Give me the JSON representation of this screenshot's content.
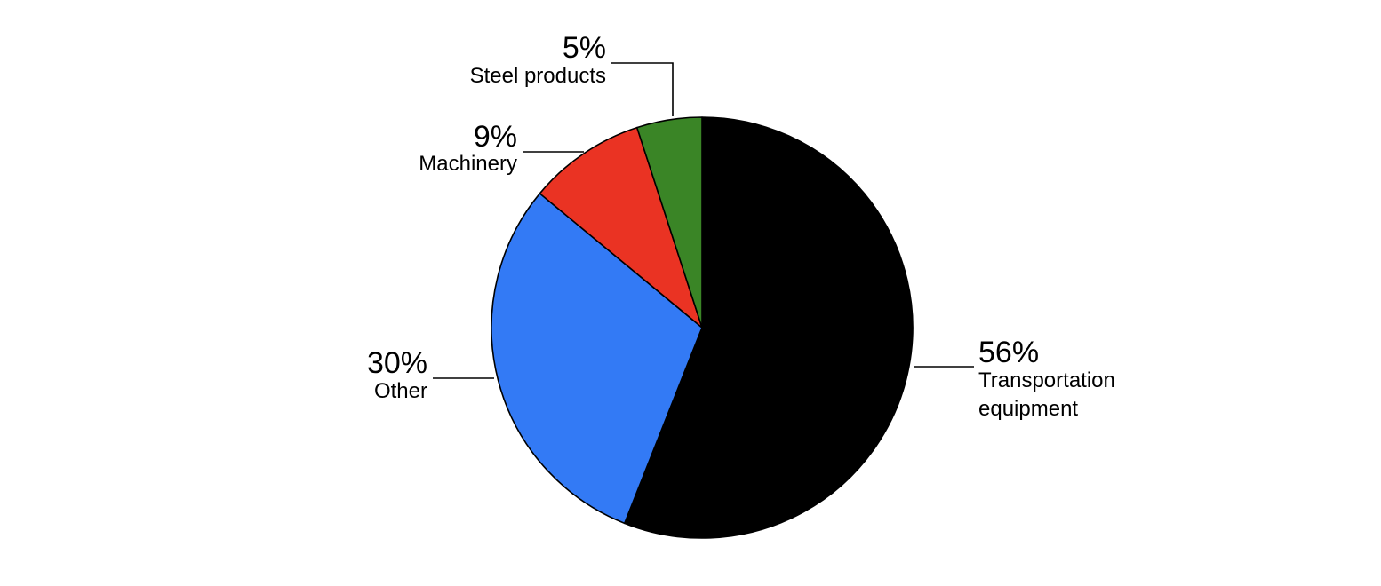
{
  "chart_data": {
    "type": "pie",
    "start_angle_deg": 0,
    "direction": "clockwise",
    "slices": [
      {
        "label": "Transportation equipment",
        "label_lines": [
          "Transportation",
          "equipment"
        ],
        "value": 56,
        "value_label": "56%",
        "color": "#000000"
      },
      {
        "label": "Other",
        "label_lines": [
          "Other"
        ],
        "value": 30,
        "value_label": "30%",
        "color": "#337AF5"
      },
      {
        "label": "Machinery",
        "label_lines": [
          "Machinery"
        ],
        "value": 9,
        "value_label": "9%",
        "color": "#EA3323"
      },
      {
        "label": "Steel products",
        "label_lines": [
          "Steel products"
        ],
        "value": 5,
        "value_label": "5%",
        "color": "#3A8526"
      }
    ]
  }
}
